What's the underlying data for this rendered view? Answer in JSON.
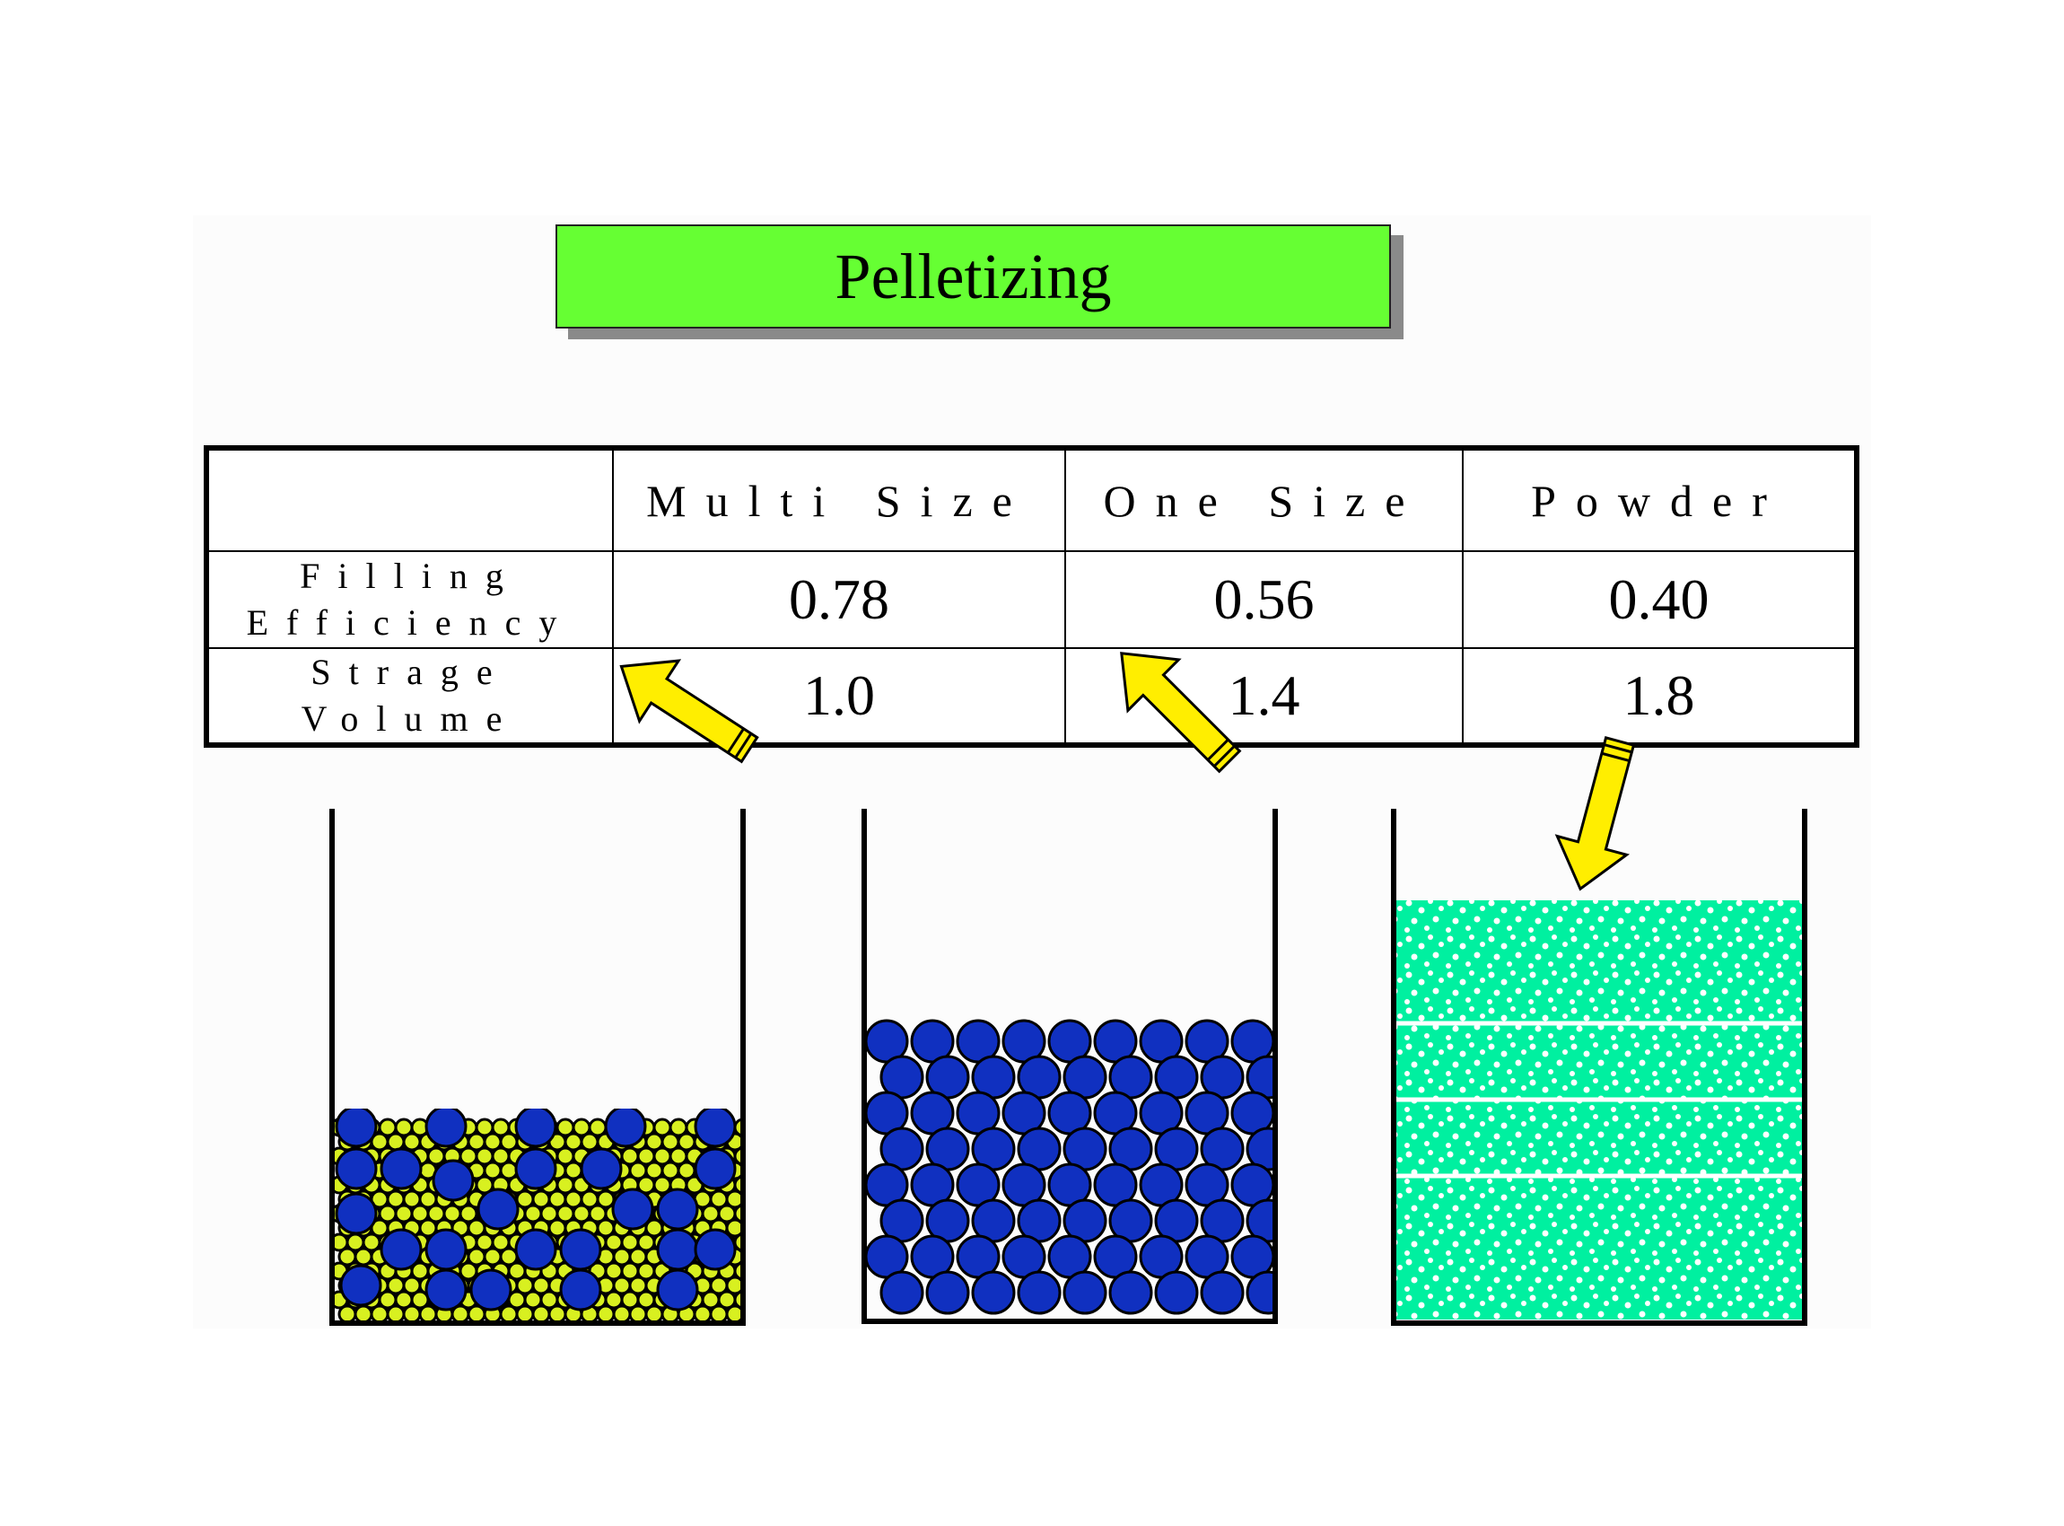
{
  "title": "Pelletizing",
  "table": {
    "headers": [
      "",
      "Multi Size",
      "One Size",
      "Powder"
    ],
    "rows": [
      {
        "label": "Filling Efficiency",
        "values": [
          "0.78",
          "0.56",
          "0.40"
        ]
      },
      {
        "label": "Strage Volume",
        "values": [
          "1.0",
          "1.4",
          "1.8"
        ]
      }
    ]
  },
  "containers": [
    {
      "name": "multi-size",
      "content": "mixed large blue and small yellow pellets"
    },
    {
      "name": "one-size",
      "content": "uniform blue pellets"
    },
    {
      "name": "powder",
      "content": "green powder"
    }
  ],
  "colors": {
    "title_bg": "#66ff33",
    "pellet_large": "#1030c0",
    "pellet_small": "#d8f020",
    "powder": "#00f0a0",
    "arrow": "#ffee00"
  }
}
